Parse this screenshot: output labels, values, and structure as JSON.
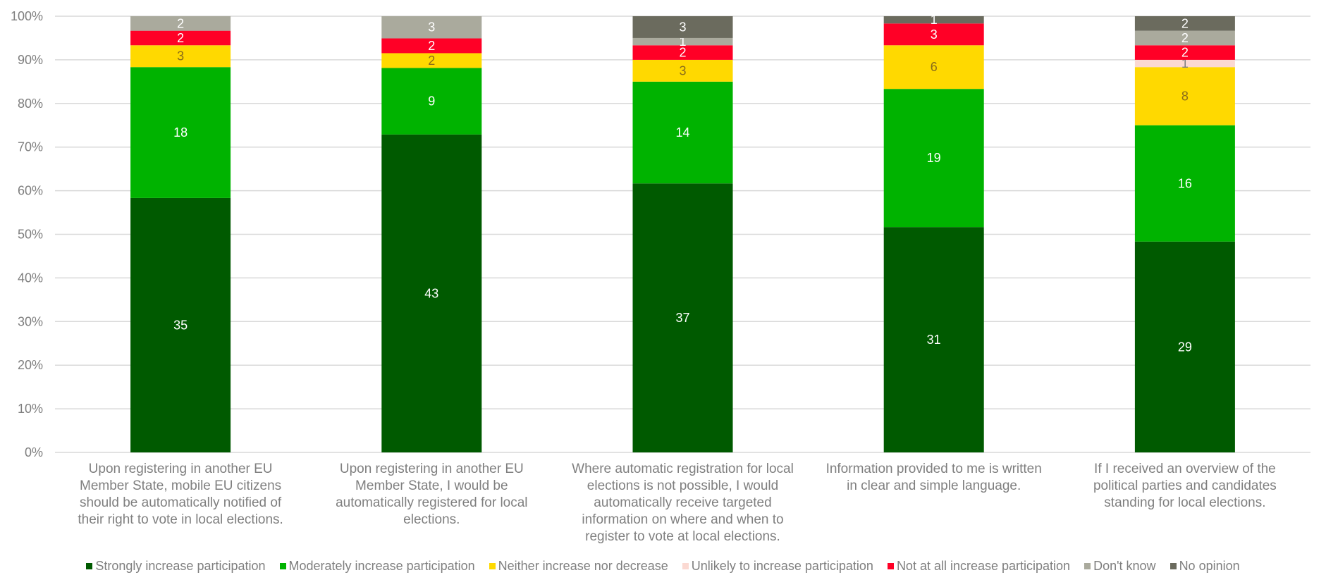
{
  "chart_data": {
    "type": "bar",
    "stacked": true,
    "normalized": true,
    "title": "",
    "xlabel": "",
    "ylabel": "",
    "ylim": [
      0,
      100
    ],
    "yticks": [
      "0%",
      "10%",
      "20%",
      "30%",
      "40%",
      "50%",
      "60%",
      "70%",
      "80%",
      "90%",
      "100%"
    ],
    "grid": true,
    "legend_position": "bottom",
    "categories": [
      "Upon registering in another EU Member State, mobile EU citizens should be automatically notified of their right to vote in local elections.",
      "Upon registering in another EU Member State, I would be automatically registered for local elections.",
      "Where automatic registration for local elections is not possible, I would automatically receive targeted information on where and when to register to vote at local elections.",
      "Information provided to me is written in clear and simple language.",
      "If I received an overview of the political parties and candidates standing for local elections."
    ],
    "category_lines": [
      [
        "Upon registering in another EU",
        "Member State, mobile EU citizens",
        "should be automatically notified of",
        "their right to vote in local elections."
      ],
      [
        "Upon registering in another EU",
        "Member State, I would be",
        "automatically registered for local",
        "elections."
      ],
      [
        "Where automatic registration for local",
        "elections is not possible, I would",
        "automatically receive targeted",
        "information on where and when to",
        "register to vote at local elections."
      ],
      [
        "Information provided to me is written",
        "in clear and simple language."
      ],
      [
        "If I received an overview of the",
        "political parties and candidates",
        "standing for local elections."
      ]
    ],
    "series": [
      {
        "name": "Strongly increase participation",
        "color": "#005a00",
        "label_color": "#ffffff",
        "values": [
          35,
          43,
          37,
          31,
          29
        ]
      },
      {
        "name": "Moderately increase participation",
        "color": "#00b300",
        "label_color": "#ffffff",
        "values": [
          18,
          9,
          14,
          19,
          16
        ]
      },
      {
        "name": "Neither increase nor decrease",
        "color": "#ffd900",
        "label_color": "#8a6d1a",
        "values": [
          3,
          2,
          3,
          6,
          8
        ]
      },
      {
        "name": "Unlikely to increase participation",
        "color": "#fbd9d2",
        "label_color": "#7f7f7f",
        "values": [
          0,
          0,
          0,
          0,
          1
        ]
      },
      {
        "name": "Not at all increase participation",
        "color": "#ff0026",
        "label_color": "#ffffff",
        "values": [
          2,
          2,
          2,
          3,
          2
        ]
      },
      {
        "name": "Don't know",
        "color": "#aaaa9d",
        "label_color": "#ffffff",
        "values": [
          2,
          3,
          1,
          0,
          2
        ]
      },
      {
        "name": "No opinion",
        "color": "#6b6b5e",
        "label_color": "#ffffff",
        "values": [
          0,
          0,
          3,
          1,
          2
        ]
      }
    ]
  }
}
